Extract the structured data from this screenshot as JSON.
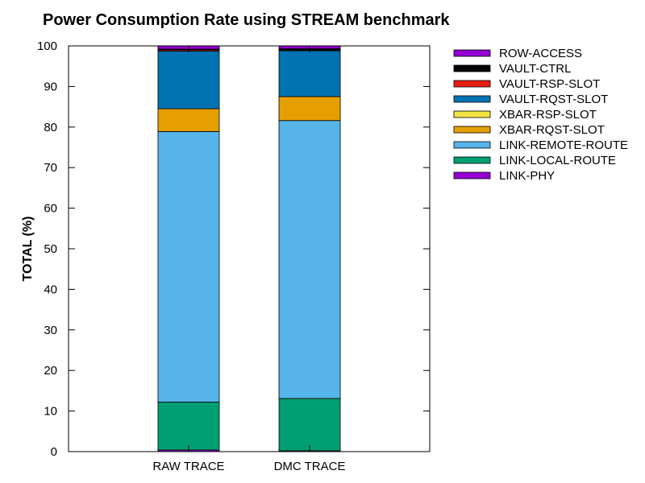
{
  "chart_data": {
    "type": "bar",
    "stacked": true,
    "title": "Power Consumption Rate using STREAM benchmark",
    "xlabel": "",
    "ylabel": "TOTAL (%)",
    "ylim": [
      0,
      100
    ],
    "yticks": [
      "0",
      "10",
      "20",
      "30",
      "40",
      "50",
      "60",
      "70",
      "80",
      "90",
      "100"
    ],
    "categories": [
      "RAW TRACE",
      "DMC TRACE"
    ],
    "grid": false,
    "legend_position": "right, outside plot",
    "legend_order": [
      "ROW-ACCESS",
      "VAULT-CTRL",
      "VAULT-RSP-SLOT",
      "VAULT-RQST-SLOT",
      "XBAR-RSP-SLOT",
      "XBAR-RQST-SLOT",
      "LINK-REMOTE-ROUTE",
      "LINK-LOCAL-ROUTE",
      "LINK-PHY"
    ],
    "series": [
      {
        "name": "LINK-PHY",
        "color": "#9400d3",
        "values": [
          0.4,
          0.2
        ]
      },
      {
        "name": "LINK-LOCAL-ROUTE",
        "color": "#009e73",
        "values": [
          11.8,
          12.9
        ]
      },
      {
        "name": "LINK-REMOTE-ROUTE",
        "color": "#56b4e9",
        "values": [
          66.7,
          68.5
        ]
      },
      {
        "name": "XBAR-RQST-SLOT",
        "color": "#e69f00",
        "values": [
          5.6,
          5.9
        ]
      },
      {
        "name": "XBAR-RSP-SLOT",
        "color": "#f0e442",
        "values": [
          0.0,
          0.0
        ]
      },
      {
        "name": "VAULT-RQST-SLOT",
        "color": "#0072b2",
        "values": [
          14.2,
          11.3
        ]
      },
      {
        "name": "VAULT-RSP-SLOT",
        "color": "#e51e10",
        "values": [
          0.3,
          0.2
        ]
      },
      {
        "name": "VAULT-CTRL",
        "color": "#000000",
        "values": [
          0.2,
          0.3
        ]
      },
      {
        "name": "ROW-ACCESS",
        "color": "#9400d3",
        "values": [
          0.8,
          0.7
        ]
      }
    ]
  }
}
